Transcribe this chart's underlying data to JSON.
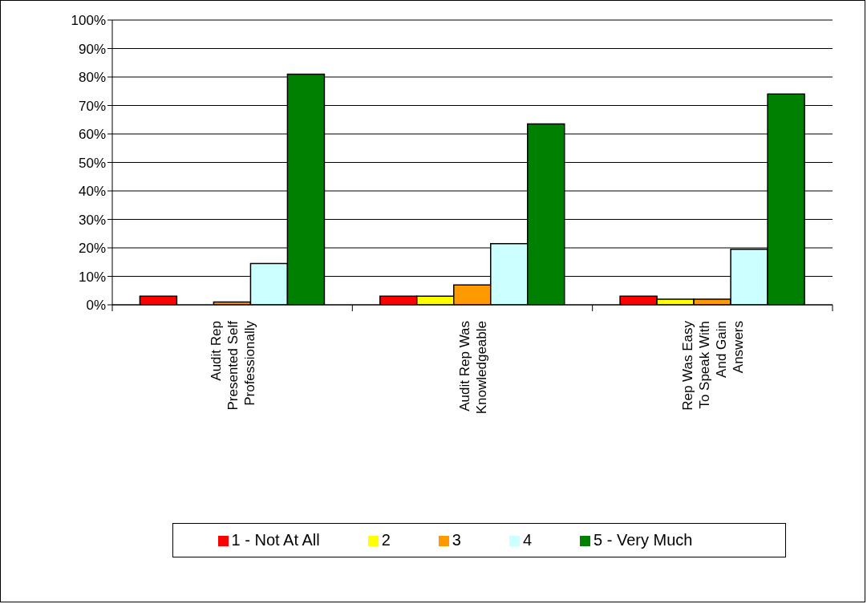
{
  "chart_data": {
    "type": "bar",
    "categories": [
      "Audit Rep Presented Self Professionally",
      "Audit Rep Was Knowledgeable",
      "Rep Was Easy To Speak With And Gain Answers"
    ],
    "series": [
      {
        "name": "1 - Not At All",
        "color": "#ff0000",
        "values": [
          3,
          3,
          3
        ]
      },
      {
        "name": "2",
        "color": "#ffff00",
        "values": [
          0,
          3,
          2
        ]
      },
      {
        "name": "3",
        "color": "#ff9900",
        "values": [
          1,
          7,
          2
        ]
      },
      {
        "name": "4",
        "color": "#ccffff",
        "values": [
          14.5,
          21.5,
          19.5
        ]
      },
      {
        "name": "5 -  Very Much",
        "color": "#008000",
        "values": [
          81,
          63.5,
          74
        ]
      }
    ],
    "ylim": [
      0,
      100
    ],
    "yticks": [
      {
        "value": 0,
        "label": "0%"
      },
      {
        "value": 10,
        "label": "10%"
      },
      {
        "value": 20,
        "label": "20%"
      },
      {
        "value": 30,
        "label": "30%"
      },
      {
        "value": 40,
        "label": "40%"
      },
      {
        "value": 50,
        "label": "50%"
      },
      {
        "value": 60,
        "label": "60%"
      },
      {
        "value": 70,
        "label": "70%"
      },
      {
        "value": 80,
        "label": "80%"
      },
      {
        "value": 90,
        "label": "90%"
      },
      {
        "value": 100,
        "label": "100%"
      }
    ],
    "grid": "y",
    "legend": "bottom"
  }
}
